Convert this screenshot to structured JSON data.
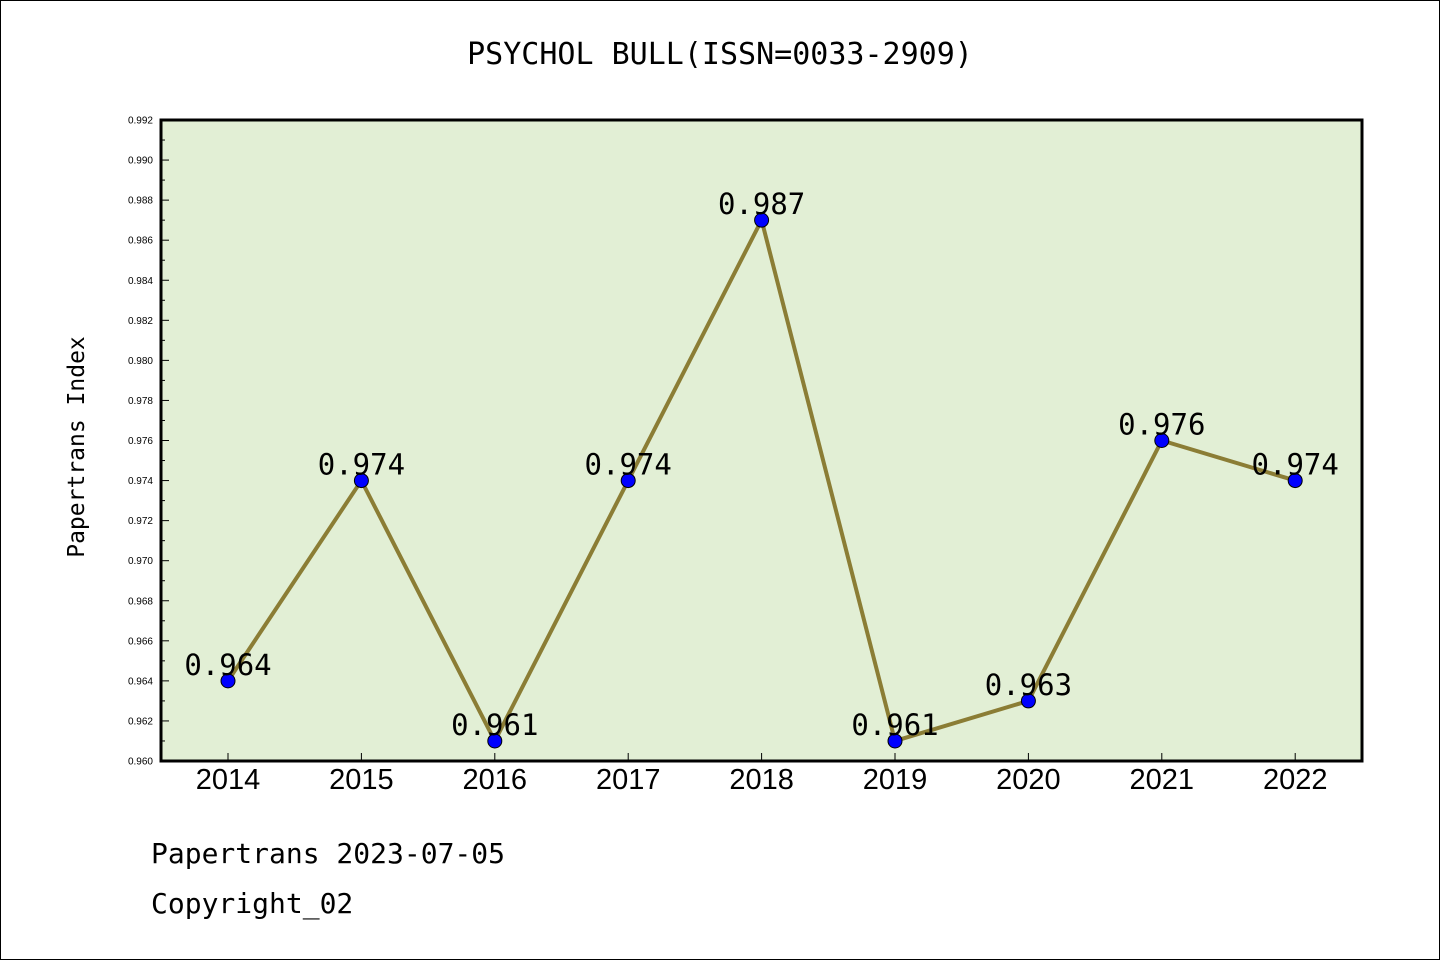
{
  "title": "PSYCHOL BULL(ISSN=0033-2909)",
  "footer": {
    "date_line": "Papertrans 2023-07-05",
    "copyright": "Copyright_02"
  },
  "colors": {
    "plot_background": "#e2efd5",
    "line": "#8b7d35",
    "marker": "#0000ff"
  },
  "chart_data": {
    "type": "line",
    "title": "PSYCHOL BULL(ISSN=0033-2909)",
    "xlabel": "",
    "ylabel": "Papertrans Index",
    "x": [
      "2014",
      "2015",
      "2016",
      "2017",
      "2018",
      "2019",
      "2020",
      "2021",
      "2022"
    ],
    "series": [
      {
        "values": [
          0.964,
          0.974,
          0.961,
          0.974,
          0.987,
          0.961,
          0.963,
          0.976,
          0.974
        ],
        "data_labels": [
          "0.964",
          "0.974",
          "0.961",
          "0.974",
          "0.987",
          "0.961",
          "0.963",
          "0.976",
          "0.974"
        ]
      }
    ],
    "ylim": [
      0.96,
      0.992
    ],
    "yticks": [
      "0.960",
      "0.962",
      "0.964",
      "0.966",
      "0.968",
      "0.970",
      "0.972",
      "0.974",
      "0.976",
      "0.978",
      "0.980",
      "0.982",
      "0.984",
      "0.986",
      "0.988",
      "0.990",
      "0.992"
    ],
    "grid": false,
    "legend": "none"
  }
}
